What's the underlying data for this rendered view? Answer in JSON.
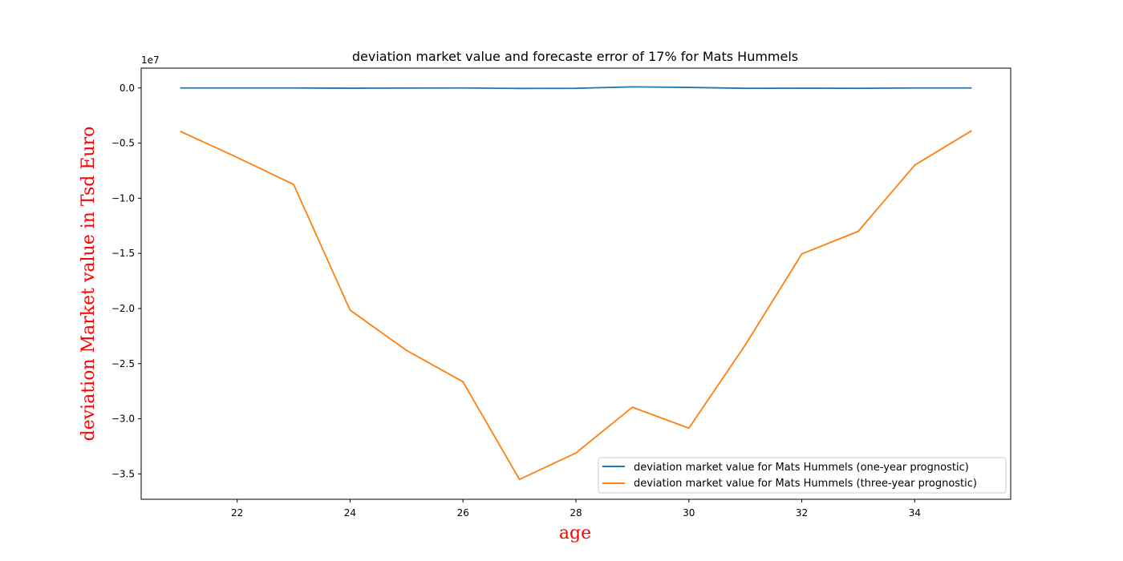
{
  "chart_data": {
    "type": "line",
    "title": "deviation market value and forecaste error of 17% for Mats Hummels",
    "xlabel": "age",
    "ylabel": "deviation Market value in Tsd Euro",
    "axis_label_color": "#ff0000",
    "y_offset_text": "1e7",
    "xlim": [
      20.3,
      35.7
    ],
    "ylim": [
      -37300000,
      1800000
    ],
    "x_ticks": [
      22,
      24,
      26,
      28,
      30,
      32,
      34
    ],
    "y_ticks": [
      0,
      -5000000,
      -10000000,
      -15000000,
      -20000000,
      -25000000,
      -30000000,
      -35000000
    ],
    "y_tick_labels": [
      "0.0",
      "−0.5",
      "−1.0",
      "−1.5",
      "−2.0",
      "−2.5",
      "−3.0",
      "−3.5"
    ],
    "grid": false,
    "legend_position": "lower-right",
    "x": [
      21,
      22,
      23,
      24,
      25,
      26,
      27,
      28,
      29,
      30,
      31,
      32,
      33,
      34,
      35
    ],
    "series": [
      {
        "name": "deviation market value for Mats Hummels (one-year prognostic)",
        "color": "#1f77b4",
        "values": [
          0,
          0,
          0,
          -20000,
          -10000,
          0,
          -40000,
          -30000,
          100000,
          50000,
          -30000,
          -20000,
          -30000,
          0,
          0
        ]
      },
      {
        "name": "deviation market value for Mats Hummels (three-year prognostic)",
        "color": "#ff7f0e",
        "values": [
          -3950000,
          -6300000,
          -8750000,
          -20150000,
          -23800000,
          -26650000,
          -35500000,
          -33100000,
          -28950000,
          -30850000,
          -23300000,
          -15050000,
          -13000000,
          -7000000,
          -3900000
        ]
      }
    ]
  }
}
